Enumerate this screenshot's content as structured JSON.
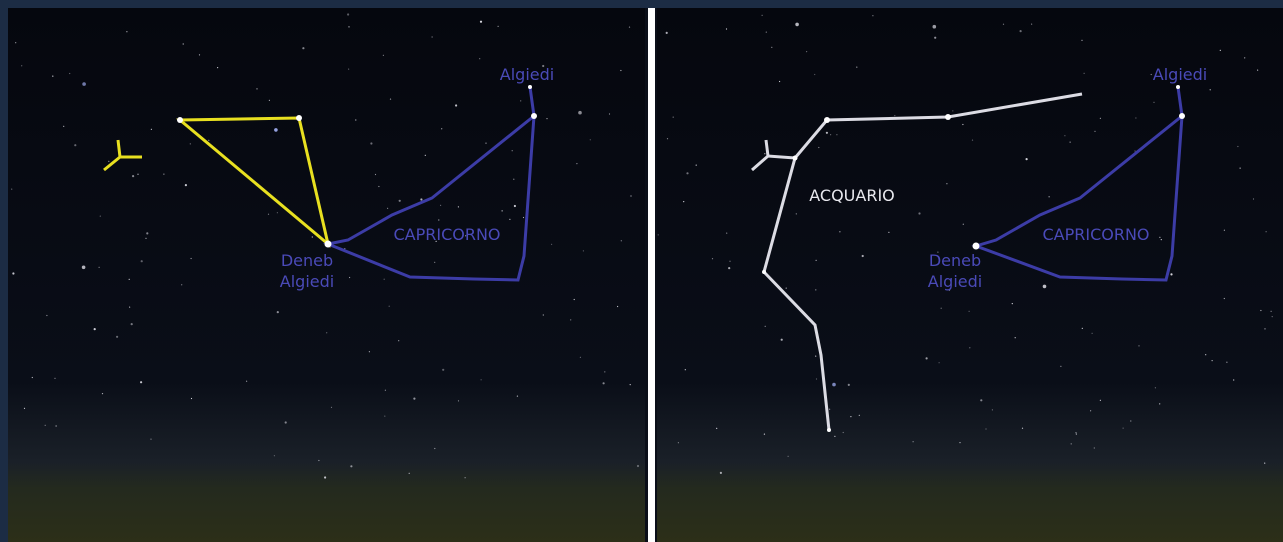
{
  "panels": [
    {
      "labels": {
        "algiedi": "Algiedi",
        "capricorno": "CAPRICORNO",
        "deneb": [
          "Deneb",
          "Algiedi"
        ]
      }
    },
    {
      "labels": {
        "algiedi": "Algiedi",
        "capricorno": "CAPRICORNO",
        "deneb": [
          "Deneb",
          "Algiedi"
        ],
        "acquario": "ACQUARIO"
      }
    }
  ]
}
